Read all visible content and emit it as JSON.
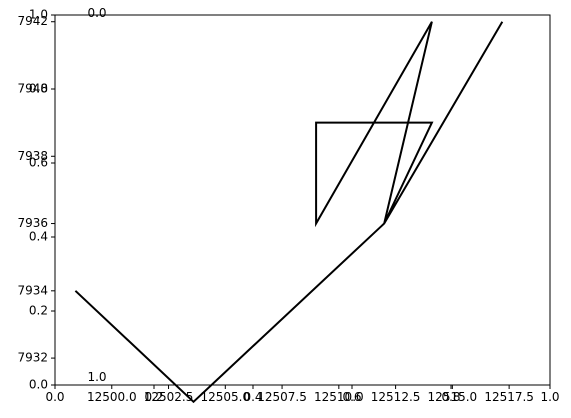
{
  "chart_data": {
    "type": "line",
    "colors": {
      "line": "#000000",
      "axes": "#000000",
      "background": "#ffffff"
    },
    "overlay_axes": {
      "y_ticks": [
        "0.0",
        "0.2",
        "0.4",
        "0.6",
        "0.8",
        "1.0"
      ],
      "x_ticks": [
        "0.0",
        "0.2",
        "0.4",
        "0.6",
        "0.8",
        "1.0"
      ],
      "ylim": [
        0,
        1
      ],
      "xlim": [
        0,
        1
      ]
    },
    "inset_axis": {
      "y_tick": "0.0",
      "x_tick": "1.0"
    },
    "data_axes": {
      "xlim": [
        12497.5,
        12519.3
      ],
      "ylim": [
        7931.2,
        7942.2
      ],
      "x_ticks": [
        {
          "value": 12500.0,
          "label": "12500.0"
        },
        {
          "value": 12502.5,
          "label": "12502.5"
        },
        {
          "value": 12505.0,
          "label": "12505.0"
        },
        {
          "value": 12507.5,
          "label": "12507.5"
        },
        {
          "value": 12510.0,
          "label": "12510.0"
        },
        {
          "value": 12512.5,
          "label": "12512.5"
        },
        {
          "value": 12515.0,
          "label": "12515.0"
        },
        {
          "value": 12517.5,
          "label": "12517.5"
        }
      ],
      "y_ticks": [
        {
          "value": 7932,
          "label": "7932"
        },
        {
          "value": 7934,
          "label": "7934"
        },
        {
          "value": 7936,
          "label": "7936"
        },
        {
          "value": 7938,
          "label": "7938"
        },
        {
          "value": 7940,
          "label": "7940"
        },
        {
          "value": 7942,
          "label": "7942"
        }
      ]
    },
    "series": [
      {
        "points": [
          [
            12498.4,
            7934.0
          ],
          [
            12503.6,
            7930.7
          ],
          [
            12512.0,
            7936.0
          ],
          [
            12514.1,
            7942.0
          ],
          [
            12509.0,
            7936.0
          ],
          [
            12509.0,
            7939.0
          ],
          [
            12514.1,
            7939.0
          ],
          [
            12512.0,
            7936.0
          ],
          [
            12517.2,
            7942.0
          ]
        ]
      }
    ]
  }
}
